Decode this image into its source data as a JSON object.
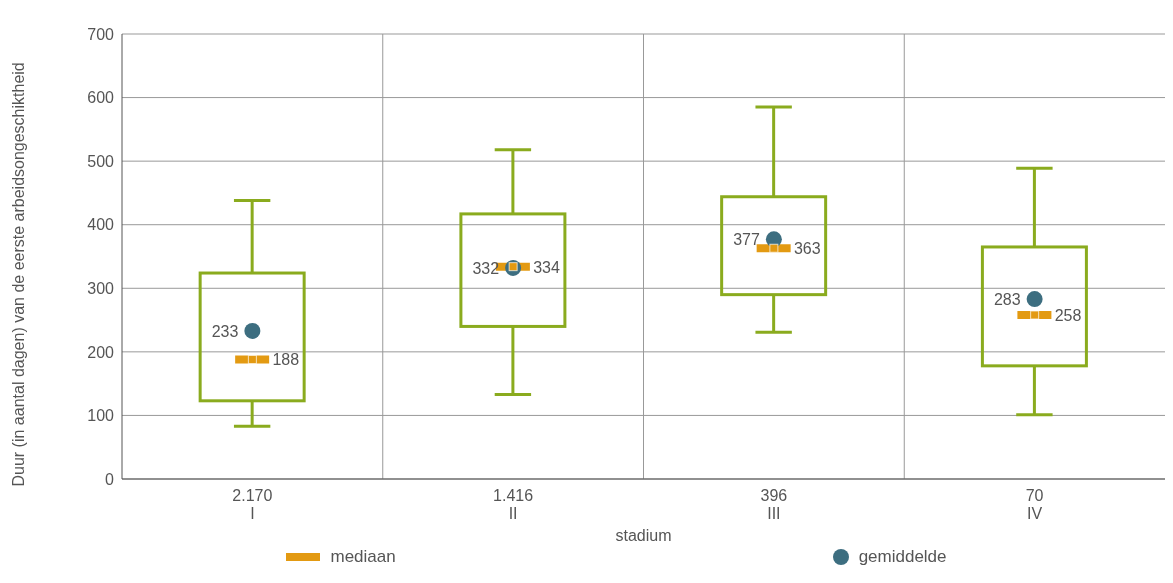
{
  "chart_data": {
    "type": "box",
    "xlabel": "stadium",
    "ylabel": "Duur (in aantal dagen) van de eerste arbeidsongeschiktheid",
    "categories": [
      "2.170\nI",
      "1.416\nII",
      "396\nIII",
      "70\nIV"
    ],
    "ylim": [
      0,
      700
    ],
    "yticks": [
      0,
      100,
      200,
      300,
      400,
      500,
      600,
      700
    ],
    "grid": true,
    "legend": "bottom",
    "series": [
      {
        "type": "box",
        "color": "#8aab1e",
        "boxes": [
          {
            "low": 83,
            "q1": 123,
            "median": 188,
            "q3": 324,
            "high": 438
          },
          {
            "low": 133,
            "q1": 240,
            "median": 334,
            "q3": 417,
            "high": 518
          },
          {
            "low": 231,
            "q1": 290,
            "median": 363,
            "q3": 444,
            "high": 585
          },
          {
            "low": 101,
            "q1": 178,
            "median": 258,
            "q3": 365,
            "high": 489
          }
        ]
      },
      {
        "type": "scatter",
        "name": "mediaan",
        "color": "#e39a12",
        "marker": "square",
        "values": [
          188,
          334,
          363,
          258
        ],
        "data_labels": true
      },
      {
        "type": "scatter",
        "name": "gemiddelde",
        "color": "#3d6e80",
        "marker": "circle",
        "values": [
          233,
          332,
          377,
          283
        ],
        "data_labels": true
      }
    ]
  }
}
